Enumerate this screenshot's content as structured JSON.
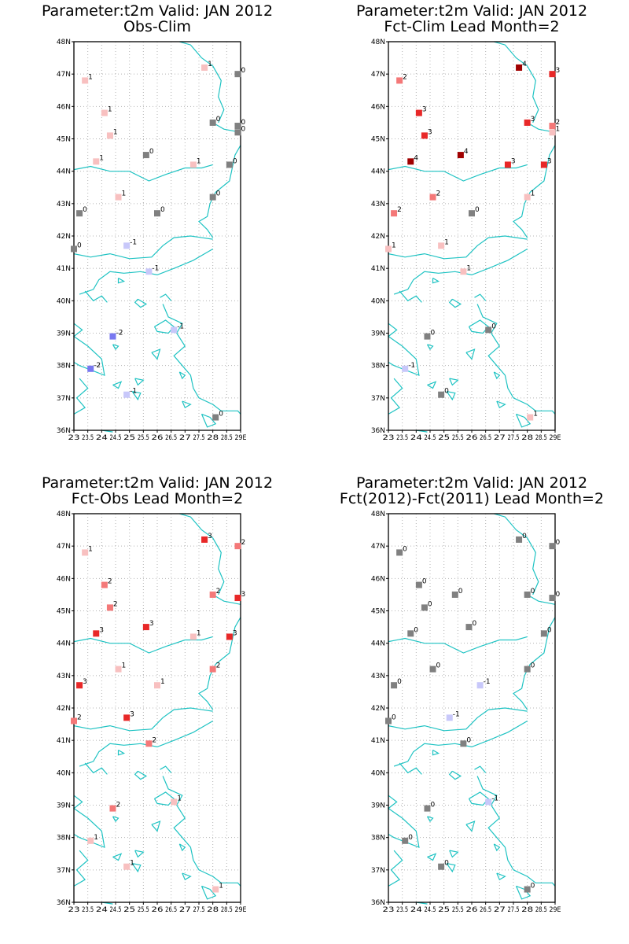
{
  "colors": {
    "coast": "#1fc3c3",
    "grid": "#b4b4b4",
    "levels": {
      "-2": "#7878f0",
      "-1": "#c8c8fa",
      "0": "#808080",
      "1": "#f8c0c0",
      "2": "#f47878",
      "3": "#e82828",
      "4": "#a00000"
    }
  },
  "axes": {
    "lon_range": [
      23,
      29
    ],
    "lat_range": [
      36,
      48
    ],
    "lon_ticks": [
      "23",
      "23.5",
      "24",
      "24.5",
      "25",
      "25.5",
      "26",
      "26.5",
      "27",
      "27.5",
      "28",
      "28.5",
      "29E"
    ],
    "lat_ticks": [
      "36N",
      "37N",
      "38N",
      "39N",
      "40N",
      "41N",
      "42N",
      "43N",
      "44N",
      "45N",
      "46N",
      "47N",
      "48N"
    ]
  },
  "chart_data": [
    {
      "type": "scatter",
      "title": "Parameter:t2m Valid: JAN 2012",
      "subtitle": "Obs-Clim",
      "points": [
        {
          "lon": 23.4,
          "lat": 46.8,
          "v": 1
        },
        {
          "lon": 27.7,
          "lat": 47.2,
          "v": 1
        },
        {
          "lon": 28.9,
          "lat": 47.0,
          "v": 0
        },
        {
          "lon": 24.1,
          "lat": 45.8,
          "v": 1
        },
        {
          "lon": 28.0,
          "lat": 45.5,
          "v": 0
        },
        {
          "lon": 28.9,
          "lat": 45.4,
          "v": 0
        },
        {
          "lon": 28.9,
          "lat": 45.2,
          "v": 0
        },
        {
          "lon": 24.3,
          "lat": 45.1,
          "v": 1
        },
        {
          "lon": 25.6,
          "lat": 44.5,
          "v": 0
        },
        {
          "lon": 23.8,
          "lat": 44.3,
          "v": 1
        },
        {
          "lon": 27.3,
          "lat": 44.2,
          "v": 1
        },
        {
          "lon": 28.6,
          "lat": 44.2,
          "v": 0
        },
        {
          "lon": 24.6,
          "lat": 43.2,
          "v": 1
        },
        {
          "lon": 28.0,
          "lat": 43.2,
          "v": 0
        },
        {
          "lon": 23.2,
          "lat": 42.7,
          "v": 0
        },
        {
          "lon": 26.0,
          "lat": 42.7,
          "v": 0
        },
        {
          "lon": 24.9,
          "lat": 41.7,
          "v": -1
        },
        {
          "lon": 23.0,
          "lat": 41.6,
          "v": 0
        },
        {
          "lon": 25.7,
          "lat": 40.9,
          "v": -1
        },
        {
          "lon": 26.6,
          "lat": 39.1,
          "v": -1
        },
        {
          "lon": 24.4,
          "lat": 38.9,
          "v": -2
        },
        {
          "lon": 23.6,
          "lat": 37.9,
          "v": -2
        },
        {
          "lon": 24.9,
          "lat": 37.1,
          "v": -1
        },
        {
          "lon": 28.1,
          "lat": 36.4,
          "v": 0
        }
      ]
    },
    {
      "type": "scatter",
      "title": "Parameter:t2m Valid: JAN 2012",
      "subtitle": "Fct-Clim Lead Month=2",
      "points": [
        {
          "lon": 23.4,
          "lat": 46.8,
          "v": 2
        },
        {
          "lon": 27.7,
          "lat": 47.2,
          "v": 4
        },
        {
          "lon": 28.9,
          "lat": 47.0,
          "v": 3
        },
        {
          "lon": 24.1,
          "lat": 45.8,
          "v": 3
        },
        {
          "lon": 28.0,
          "lat": 45.5,
          "v": 3
        },
        {
          "lon": 28.9,
          "lat": 45.4,
          "v": 2
        },
        {
          "lon": 28.9,
          "lat": 45.2,
          "v": 1
        },
        {
          "lon": 24.3,
          "lat": 45.1,
          "v": 3
        },
        {
          "lon": 25.6,
          "lat": 44.5,
          "v": 4
        },
        {
          "lon": 23.8,
          "lat": 44.3,
          "v": 4
        },
        {
          "lon": 27.3,
          "lat": 44.2,
          "v": 3
        },
        {
          "lon": 28.6,
          "lat": 44.2,
          "v": 3
        },
        {
          "lon": 24.6,
          "lat": 43.2,
          "v": 2
        },
        {
          "lon": 28.0,
          "lat": 43.2,
          "v": 1
        },
        {
          "lon": 23.2,
          "lat": 42.7,
          "v": 2
        },
        {
          "lon": 26.0,
          "lat": 42.7,
          "v": 0
        },
        {
          "lon": 24.9,
          "lat": 41.7,
          "v": 1
        },
        {
          "lon": 23.0,
          "lat": 41.6,
          "v": 1
        },
        {
          "lon": 25.7,
          "lat": 40.9,
          "v": 1
        },
        {
          "lon": 26.6,
          "lat": 39.1,
          "v": 0
        },
        {
          "lon": 24.4,
          "lat": 38.9,
          "v": 0
        },
        {
          "lon": 23.6,
          "lat": 37.9,
          "v": -1
        },
        {
          "lon": 24.9,
          "lat": 37.1,
          "v": 0
        },
        {
          "lon": 28.1,
          "lat": 36.4,
          "v": 1
        }
      ]
    },
    {
      "type": "scatter",
      "title": "Parameter:t2m Valid: JAN 2012",
      "subtitle": "Fct-Obs Lead Month=2",
      "points": [
        {
          "lon": 23.4,
          "lat": 46.8,
          "v": 1
        },
        {
          "lon": 27.7,
          "lat": 47.2,
          "v": 3
        },
        {
          "lon": 28.9,
          "lat": 47.0,
          "v": 2
        },
        {
          "lon": 24.1,
          "lat": 45.8,
          "v": 2
        },
        {
          "lon": 28.0,
          "lat": 45.5,
          "v": 2
        },
        {
          "lon": 28.9,
          "lat": 45.4,
          "v": 3
        },
        {
          "lon": 24.3,
          "lat": 45.1,
          "v": 2
        },
        {
          "lon": 25.6,
          "lat": 44.5,
          "v": 3
        },
        {
          "lon": 23.8,
          "lat": 44.3,
          "v": 3
        },
        {
          "lon": 27.3,
          "lat": 44.2,
          "v": 1
        },
        {
          "lon": 28.6,
          "lat": 44.2,
          "v": 3
        },
        {
          "lon": 24.6,
          "lat": 43.2,
          "v": 1
        },
        {
          "lon": 28.0,
          "lat": 43.2,
          "v": 2
        },
        {
          "lon": 23.2,
          "lat": 42.7,
          "v": 3
        },
        {
          "lon": 26.0,
          "lat": 42.7,
          "v": 1
        },
        {
          "lon": 24.9,
          "lat": 41.7,
          "v": 3
        },
        {
          "lon": 23.0,
          "lat": 41.6,
          "v": 2
        },
        {
          "lon": 25.7,
          "lat": 40.9,
          "v": 2
        },
        {
          "lon": 26.6,
          "lat": 39.1,
          "v": 1
        },
        {
          "lon": 24.4,
          "lat": 38.9,
          "v": 2
        },
        {
          "lon": 23.6,
          "lat": 37.9,
          "v": 1
        },
        {
          "lon": 24.9,
          "lat": 37.1,
          "v": 1
        },
        {
          "lon": 28.1,
          "lat": 36.4,
          "v": 1
        }
      ]
    },
    {
      "type": "scatter",
      "title": "Parameter:t2m Valid: JAN 2012",
      "subtitle": "Fct(2012)-Fct(2011) Lead Month=2",
      "points": [
        {
          "lon": 23.4,
          "lat": 46.8,
          "v": 0
        },
        {
          "lon": 27.7,
          "lat": 47.2,
          "v": 0
        },
        {
          "lon": 28.9,
          "lat": 47.0,
          "v": 0
        },
        {
          "lon": 24.1,
          "lat": 45.8,
          "v": 0
        },
        {
          "lon": 25.4,
          "lat": 45.5,
          "v": 0
        },
        {
          "lon": 28.0,
          "lat": 45.5,
          "v": 0
        },
        {
          "lon": 28.9,
          "lat": 45.4,
          "v": 0
        },
        {
          "lon": 24.3,
          "lat": 45.1,
          "v": 0
        },
        {
          "lon": 25.9,
          "lat": 44.5,
          "v": 0
        },
        {
          "lon": 28.6,
          "lat": 44.3,
          "v": 0
        },
        {
          "lon": 23.8,
          "lat": 44.3,
          "v": 0
        },
        {
          "lon": 24.6,
          "lat": 43.2,
          "v": 0
        },
        {
          "lon": 28.0,
          "lat": 43.2,
          "v": 0
        },
        {
          "lon": 23.2,
          "lat": 42.7,
          "v": 0
        },
        {
          "lon": 26.3,
          "lat": 42.7,
          "v": -1
        },
        {
          "lon": 25.2,
          "lat": 41.7,
          "v": -1
        },
        {
          "lon": 23.0,
          "lat": 41.6,
          "v": 0
        },
        {
          "lon": 25.7,
          "lat": 40.9,
          "v": 0
        },
        {
          "lon": 26.6,
          "lat": 39.1,
          "v": -1
        },
        {
          "lon": 24.4,
          "lat": 38.9,
          "v": 0
        },
        {
          "lon": 23.6,
          "lat": 37.9,
          "v": 0
        },
        {
          "lon": 24.9,
          "lat": 37.1,
          "v": 0
        },
        {
          "lon": 28.0,
          "lat": 36.4,
          "v": 0
        }
      ]
    }
  ]
}
